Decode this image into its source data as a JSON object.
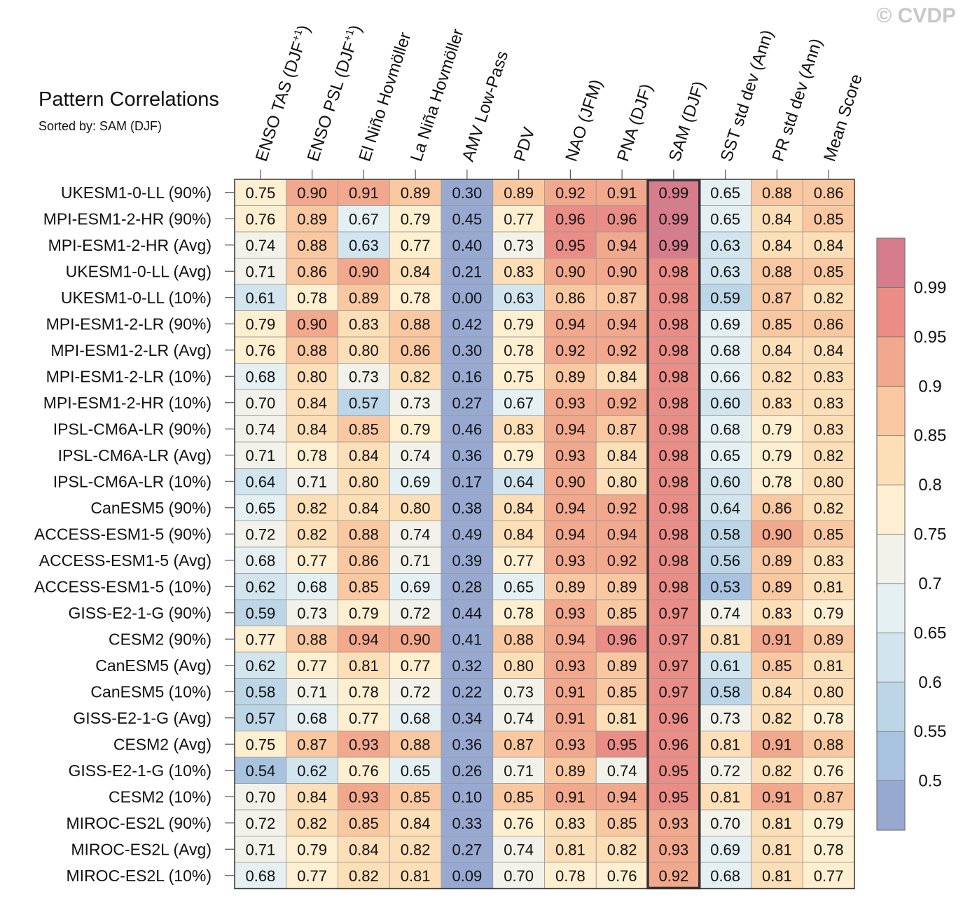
{
  "header": {
    "title": "Pattern Correlations",
    "subtitle": "Sorted by: SAM (DJF)",
    "copyright": "© CVDP"
  },
  "chart_data": {
    "type": "heatmap",
    "title": "Pattern Correlations",
    "subtitle": "Sorted by: SAM (DJF)",
    "highlighted_column": "SAM (DJF)",
    "columns": [
      "ENSO TAS (DJF+1)",
      "ENSO PSL (DJF+1)",
      "El Niño Hovmöller",
      "La Niña Hovmöller",
      "AMV Low-Pass",
      "PDV",
      "NAO (JFM)",
      "PNA (DJF)",
      "SAM (DJF)",
      "SST std dev (Ann)",
      "PR std dev (Ann)",
      "Mean Score"
    ],
    "rows": [
      {
        "label": "UKESM1-0-LL (90%)",
        "values": [
          "0.75",
          "0.90",
          "0.91",
          "0.89",
          "0.30",
          "0.89",
          "0.92",
          "0.91",
          "0.99",
          "0.65",
          "0.88",
          "0.86"
        ]
      },
      {
        "label": "MPI-ESM1-2-HR (90%)",
        "values": [
          "0.76",
          "0.89",
          "0.67",
          "0.79",
          "0.45",
          "0.77",
          "0.96",
          "0.96",
          "0.99",
          "0.65",
          "0.84",
          "0.85"
        ]
      },
      {
        "label": "MPI-ESM1-2-HR (Avg)",
        "values": [
          "0.74",
          "0.88",
          "0.63",
          "0.77",
          "0.40",
          "0.73",
          "0.95",
          "0.94",
          "0.99",
          "0.63",
          "0.84",
          "0.84"
        ]
      },
      {
        "label": "UKESM1-0-LL (Avg)",
        "values": [
          "0.71",
          "0.86",
          "0.90",
          "0.84",
          "0.21",
          "0.83",
          "0.90",
          "0.90",
          "0.98",
          "0.63",
          "0.88",
          "0.85"
        ]
      },
      {
        "label": "UKESM1-0-LL (10%)",
        "values": [
          "0.61",
          "0.78",
          "0.89",
          "0.78",
          "0.00",
          "0.63",
          "0.86",
          "0.87",
          "0.98",
          "0.59",
          "0.87",
          "0.82"
        ]
      },
      {
        "label": "MPI-ESM1-2-LR (90%)",
        "values": [
          "0.79",
          "0.90",
          "0.83",
          "0.88",
          "0.42",
          "0.79",
          "0.94",
          "0.94",
          "0.98",
          "0.69",
          "0.85",
          "0.86"
        ]
      },
      {
        "label": "MPI-ESM1-2-LR (Avg)",
        "values": [
          "0.76",
          "0.88",
          "0.80",
          "0.86",
          "0.30",
          "0.78",
          "0.92",
          "0.92",
          "0.98",
          "0.68",
          "0.84",
          "0.84"
        ]
      },
      {
        "label": "MPI-ESM1-2-LR (10%)",
        "values": [
          "0.68",
          "0.80",
          "0.73",
          "0.82",
          "0.16",
          "0.75",
          "0.89",
          "0.84",
          "0.98",
          "0.66",
          "0.82",
          "0.83"
        ]
      },
      {
        "label": "MPI-ESM1-2-HR (10%)",
        "values": [
          "0.70",
          "0.84",
          "0.57",
          "0.73",
          "0.27",
          "0.67",
          "0.93",
          "0.92",
          "0.98",
          "0.60",
          "0.83",
          "0.83"
        ]
      },
      {
        "label": "IPSL-CM6A-LR (90%)",
        "values": [
          "0.74",
          "0.84",
          "0.85",
          "0.79",
          "0.46",
          "0.83",
          "0.94",
          "0.87",
          "0.98",
          "0.68",
          "0.79",
          "0.83"
        ]
      },
      {
        "label": "IPSL-CM6A-LR (Avg)",
        "values": [
          "0.71",
          "0.78",
          "0.84",
          "0.74",
          "0.36",
          "0.79",
          "0.93",
          "0.84",
          "0.98",
          "0.65",
          "0.79",
          "0.82"
        ]
      },
      {
        "label": "IPSL-CM6A-LR (10%)",
        "values": [
          "0.64",
          "0.71",
          "0.80",
          "0.69",
          "0.17",
          "0.64",
          "0.90",
          "0.80",
          "0.98",
          "0.60",
          "0.78",
          "0.80"
        ]
      },
      {
        "label": "CanESM5 (90%)",
        "values": [
          "0.65",
          "0.82",
          "0.84",
          "0.80",
          "0.38",
          "0.84",
          "0.94",
          "0.92",
          "0.98",
          "0.64",
          "0.86",
          "0.82"
        ]
      },
      {
        "label": "ACCESS-ESM1-5 (90%)",
        "values": [
          "0.72",
          "0.82",
          "0.88",
          "0.74",
          "0.49",
          "0.84",
          "0.94",
          "0.94",
          "0.98",
          "0.58",
          "0.90",
          "0.85"
        ]
      },
      {
        "label": "ACCESS-ESM1-5 (Avg)",
        "values": [
          "0.68",
          "0.77",
          "0.86",
          "0.71",
          "0.39",
          "0.77",
          "0.93",
          "0.92",
          "0.98",
          "0.56",
          "0.89",
          "0.83"
        ]
      },
      {
        "label": "ACCESS-ESM1-5 (10%)",
        "values": [
          "0.62",
          "0.68",
          "0.85",
          "0.69",
          "0.28",
          "0.65",
          "0.89",
          "0.89",
          "0.98",
          "0.53",
          "0.89",
          "0.81"
        ]
      },
      {
        "label": "GISS-E2-1-G (90%)",
        "values": [
          "0.59",
          "0.73",
          "0.79",
          "0.72",
          "0.44",
          "0.78",
          "0.93",
          "0.85",
          "0.97",
          "0.74",
          "0.83",
          "0.79"
        ]
      },
      {
        "label": "CESM2 (90%)",
        "values": [
          "0.77",
          "0.88",
          "0.94",
          "0.90",
          "0.41",
          "0.88",
          "0.94",
          "0.96",
          "0.97",
          "0.81",
          "0.91",
          "0.89"
        ]
      },
      {
        "label": "CanESM5 (Avg)",
        "values": [
          "0.62",
          "0.77",
          "0.81",
          "0.77",
          "0.32",
          "0.80",
          "0.93",
          "0.89",
          "0.97",
          "0.61",
          "0.85",
          "0.81"
        ]
      },
      {
        "label": "CanESM5 (10%)",
        "values": [
          "0.58",
          "0.71",
          "0.78",
          "0.72",
          "0.22",
          "0.73",
          "0.91",
          "0.85",
          "0.97",
          "0.58",
          "0.84",
          "0.80"
        ]
      },
      {
        "label": "GISS-E2-1-G (Avg)",
        "values": [
          "0.57",
          "0.68",
          "0.77",
          "0.68",
          "0.34",
          "0.74",
          "0.91",
          "0.81",
          "0.96",
          "0.73",
          "0.82",
          "0.78"
        ]
      },
      {
        "label": "CESM2 (Avg)",
        "values": [
          "0.75",
          "0.87",
          "0.93",
          "0.88",
          "0.36",
          "0.87",
          "0.93",
          "0.95",
          "0.96",
          "0.81",
          "0.91",
          "0.88"
        ]
      },
      {
        "label": "GISS-E2-1-G (10%)",
        "values": [
          "0.54",
          "0.62",
          "0.76",
          "0.65",
          "0.26",
          "0.71",
          "0.89",
          "0.74",
          "0.95",
          "0.72",
          "0.82",
          "0.76"
        ]
      },
      {
        "label": "CESM2 (10%)",
        "values": [
          "0.70",
          "0.84",
          "0.93",
          "0.85",
          "0.10",
          "0.85",
          "0.91",
          "0.94",
          "0.95",
          "0.81",
          "0.91",
          "0.87"
        ]
      },
      {
        "label": "MIROC-ES2L (90%)",
        "values": [
          "0.72",
          "0.82",
          "0.85",
          "0.84",
          "0.33",
          "0.76",
          "0.83",
          "0.85",
          "0.93",
          "0.70",
          "0.81",
          "0.79"
        ]
      },
      {
        "label": "MIROC-ES2L (Avg)",
        "values": [
          "0.71",
          "0.79",
          "0.84",
          "0.82",
          "0.27",
          "0.74",
          "0.81",
          "0.82",
          "0.93",
          "0.69",
          "0.81",
          "0.78"
        ]
      },
      {
        "label": "MIROC-ES2L (10%)",
        "values": [
          "0.68",
          "0.77",
          "0.82",
          "0.81",
          "0.09",
          "0.70",
          "0.78",
          "0.76",
          "0.92",
          "0.68",
          "0.81",
          "0.77"
        ]
      }
    ],
    "colorbar": {
      "levels": [
        0.5,
        0.55,
        0.6,
        0.65,
        0.7,
        0.75,
        0.8,
        0.85,
        0.9,
        0.95,
        0.99
      ],
      "tick_labels": [
        "0.5",
        "0.55",
        "0.6",
        "0.65",
        "0.7",
        "0.75",
        "0.8",
        "0.85",
        "0.9",
        "0.95",
        "0.99"
      ],
      "colors": [
        "#98a9d1",
        "#a8c3df",
        "#bdd6e7",
        "#d2e5ef",
        "#e5f0f3",
        "#f2f2ea",
        "#fdefcf",
        "#fcdfb6",
        "#f9c8a0",
        "#f2a88c",
        "#e98d86",
        "#d67c8c"
      ],
      "placement": "right"
    }
  }
}
